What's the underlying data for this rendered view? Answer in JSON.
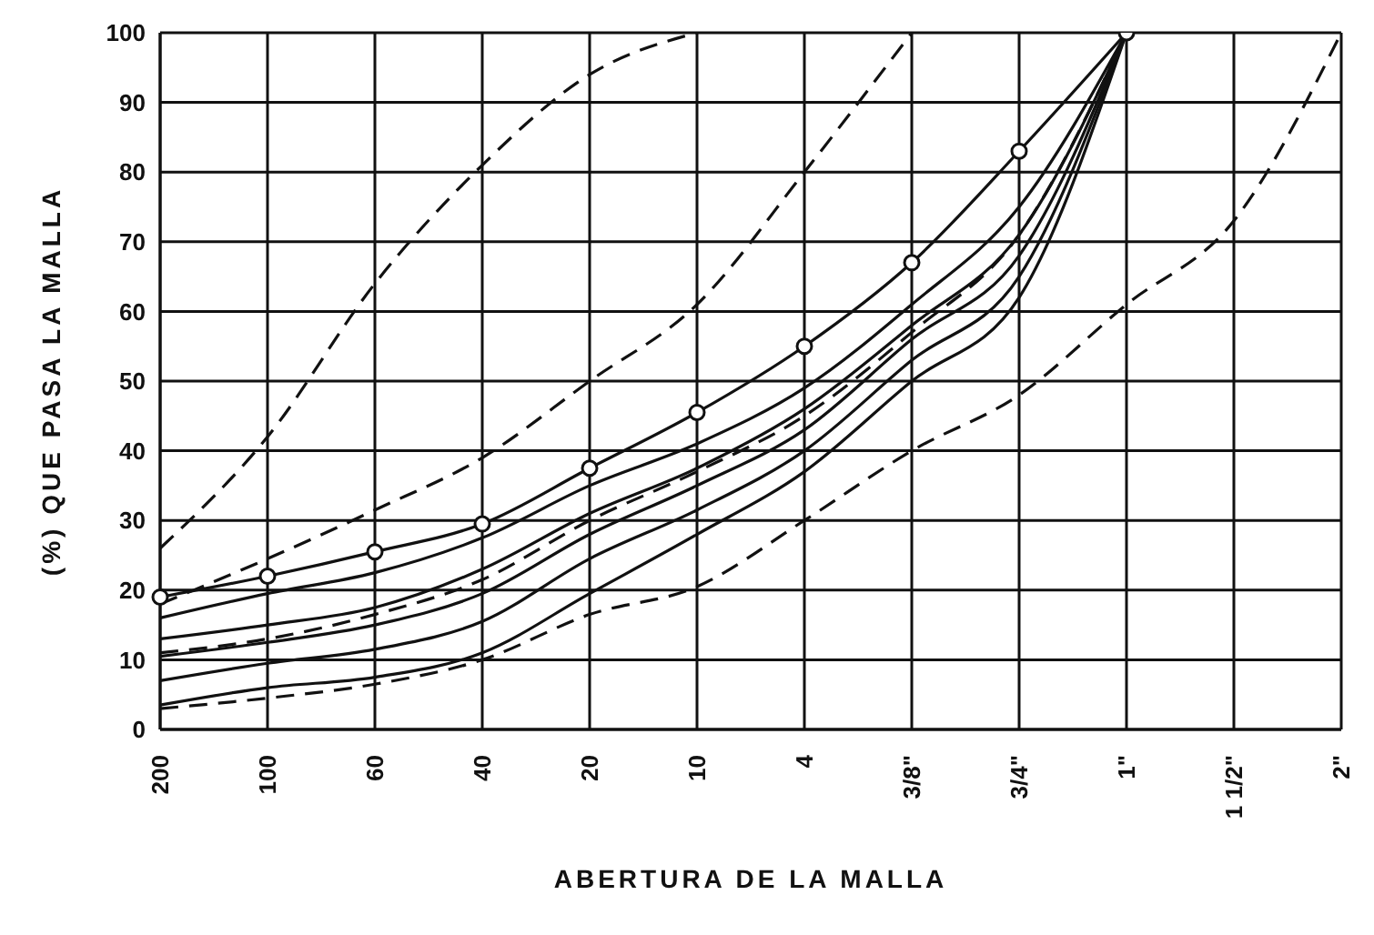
{
  "chart_data": {
    "type": "line",
    "xlabel": "ABERTURA DE LA MALLA",
    "ylabel": "(%) QUE PASA LA MALLA",
    "categories": [
      "200",
      "100",
      "60",
      "40",
      "20",
      "10",
      "4",
      "3/8\"",
      "3/4\"",
      "1\"",
      "1 1/2\"",
      "2\""
    ],
    "ylim": [
      0,
      100
    ],
    "yticks": [
      0,
      10,
      20,
      30,
      40,
      50,
      60,
      70,
      80,
      90,
      100
    ],
    "grid": true,
    "line_style": "solid",
    "series": [
      {
        "color": "#111111",
        "marker": "circle",
        "values": [
          19,
          22,
          25.5,
          29.5,
          37.5,
          45.5,
          55,
          67,
          83,
          100,
          null,
          null
        ]
      },
      {
        "color": "#111111",
        "values": [
          16,
          19.5,
          22.5,
          27.5,
          35,
          41,
          49,
          61,
          75,
          100,
          null,
          null
        ]
      },
      {
        "color": "#111111",
        "values": [
          13,
          15,
          17.5,
          23,
          31,
          37.5,
          46,
          58,
          71,
          100,
          null,
          null
        ]
      },
      {
        "color": "#111111",
        "values": [
          10.5,
          12.5,
          15,
          19.5,
          28,
          35,
          43,
          56,
          68,
          100,
          null,
          null
        ]
      },
      {
        "color": "#111111",
        "values": [
          7,
          9.5,
          11.5,
          15.5,
          24.5,
          31.5,
          40,
          53,
          65,
          100,
          null,
          null
        ]
      },
      {
        "color": "#111111",
        "values": [
          3.5,
          6,
          7.5,
          11,
          19.5,
          28,
          37,
          50,
          62,
          100,
          null,
          null
        ]
      },
      {
        "color": "#111111",
        "line_style": "dashed",
        "values": [
          26,
          42,
          64,
          81,
          94,
          100,
          null,
          null,
          null,
          null,
          null,
          null
        ]
      },
      {
        "color": "#111111",
        "line_style": "dashed",
        "values": [
          18,
          24.5,
          31.5,
          39,
          50,
          61,
          80,
          100,
          null,
          null,
          null,
          null
        ]
      },
      {
        "color": "#111111",
        "line_style": "dashed",
        "values": [
          11,
          13,
          16.5,
          21.5,
          30,
          37,
          45,
          57,
          71,
          100,
          null,
          null
        ]
      },
      {
        "color": "#111111",
        "line_style": "dashed",
        "values": [
          3,
          4.5,
          6.5,
          10,
          16.5,
          20.5,
          30,
          40,
          48,
          61,
          73,
          100
        ]
      }
    ]
  }
}
